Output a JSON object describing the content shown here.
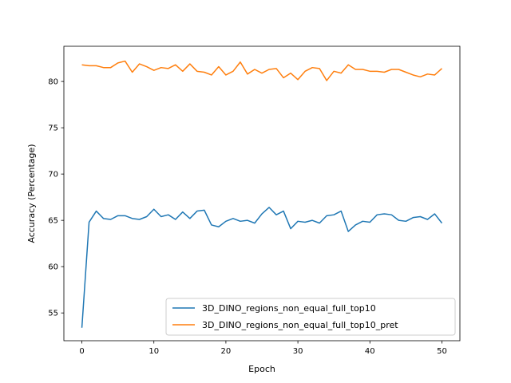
{
  "chart_data": {
    "type": "line",
    "title": "",
    "xlabel": "Epoch",
    "ylabel": "Accuracy (Percentage)",
    "xlim": [
      -2.5,
      52.5
    ],
    "ylim": [
      52.0,
      83.8
    ],
    "xticks": [
      0,
      10,
      20,
      30,
      40,
      50
    ],
    "yticks": [
      55,
      60,
      65,
      70,
      75,
      80
    ],
    "grid": false,
    "legend_position": "lower-right",
    "series": [
      {
        "name": "3D_DINO_regions_non_equal_full_top10",
        "color": "#1f77b4",
        "x": [
          0,
          1,
          2,
          3,
          4,
          5,
          6,
          7,
          8,
          9,
          10,
          11,
          12,
          13,
          14,
          15,
          16,
          17,
          18,
          19,
          20,
          21,
          22,
          23,
          24,
          25,
          26,
          27,
          28,
          29,
          30,
          31,
          32,
          33,
          34,
          35,
          36,
          37,
          38,
          39,
          40,
          41,
          42,
          43,
          44,
          45,
          46,
          47,
          48,
          49,
          50
        ],
        "values": [
          53.4,
          64.8,
          66.0,
          65.2,
          65.1,
          65.5,
          65.5,
          65.2,
          65.1,
          65.4,
          66.2,
          65.4,
          65.6,
          65.1,
          65.9,
          65.2,
          66.0,
          66.1,
          64.5,
          64.3,
          64.9,
          65.2,
          64.9,
          65.0,
          64.7,
          65.7,
          66.4,
          65.6,
          66.0,
          64.1,
          64.9,
          64.8,
          65.0,
          64.7,
          65.5,
          65.6,
          66.0,
          63.8,
          64.5,
          64.9,
          64.8,
          65.6,
          65.7,
          65.6,
          65.0,
          64.9,
          65.3,
          65.4,
          65.1,
          65.7,
          64.7
        ]
      },
      {
        "name": "3D_DINO_regions_non_equal_full_top10_pret",
        "color": "#ff7f0e",
        "x": [
          0,
          1,
          2,
          3,
          4,
          5,
          6,
          7,
          8,
          9,
          10,
          11,
          12,
          13,
          14,
          15,
          16,
          17,
          18,
          19,
          20,
          21,
          22,
          23,
          24,
          25,
          26,
          27,
          28,
          29,
          30,
          31,
          32,
          33,
          34,
          35,
          36,
          37,
          38,
          39,
          40,
          41,
          42,
          43,
          44,
          45,
          46,
          47,
          48,
          49,
          50
        ],
        "values": [
          81.8,
          81.7,
          81.7,
          81.5,
          81.5,
          82.0,
          82.2,
          81.0,
          81.9,
          81.6,
          81.2,
          81.5,
          81.4,
          81.8,
          81.1,
          81.9,
          81.1,
          81.0,
          80.7,
          81.6,
          80.7,
          81.1,
          82.1,
          80.8,
          81.3,
          80.9,
          81.3,
          81.4,
          80.4,
          80.9,
          80.2,
          81.1,
          81.5,
          81.4,
          80.1,
          81.1,
          80.9,
          81.8,
          81.3,
          81.3,
          81.1,
          81.1,
          81.0,
          81.3,
          81.3,
          81.0,
          80.7,
          80.5,
          80.8,
          80.7,
          81.4
        ]
      }
    ]
  }
}
